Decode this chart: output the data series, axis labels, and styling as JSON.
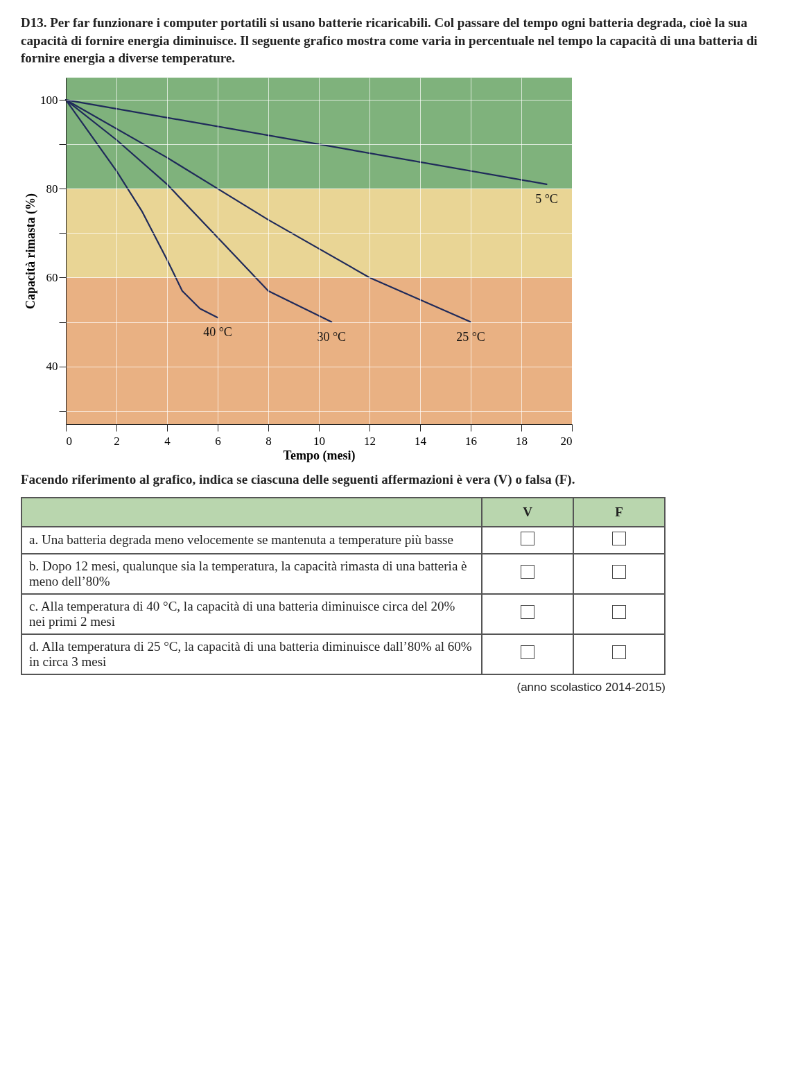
{
  "chart_data": {
    "type": "line",
    "title": "D13. Per far funzionare i computer portatili si usano batterie ricaricabili. Col passare del tempo ogni batteria degrada, cioè la sua capacità di fornire energia diminuisce. Il seguente grafico mostra come varia in percentuale nel tempo la capacità di una batteria di fornire energia a diverse temperature.",
    "xlabel": "Tempo (mesi)",
    "ylabel": "Capacità rimasta (%)",
    "series": [
      {
        "name": "5 °C",
        "color": "#1f2a5a",
        "x": [
          0,
          19
        ],
        "values": [
          100,
          81
        ]
      },
      {
        "name": "25 °C",
        "color": "#1f2a5a",
        "x": [
          0,
          4,
          8,
          12,
          16
        ],
        "values": [
          100,
          87,
          73,
          60,
          50
        ]
      },
      {
        "name": "30 °C",
        "color": "#1f2a5a",
        "x": [
          0,
          2,
          4,
          6,
          8,
          10.5
        ],
        "values": [
          100,
          91,
          81,
          69,
          57,
          50
        ]
      },
      {
        "name": "40 °C",
        "color": "#1f2a5a",
        "x": [
          0,
          1,
          2,
          3,
          4,
          4.6,
          5.3,
          6
        ],
        "values": [
          100,
          92,
          84,
          75,
          64,
          57,
          53,
          51
        ]
      }
    ],
    "bands": [
      {
        "axis": "y",
        "from": 80,
        "to": 105,
        "color": "#7fb27c"
      },
      {
        "axis": "y",
        "from": 60,
        "to": 80,
        "color": "#e9d595"
      },
      {
        "axis": "y",
        "from": 27,
        "to": 60,
        "color": "#e9b183"
      }
    ],
    "xlim": [
      0,
      20
    ],
    "xticks": [
      0,
      2,
      4,
      6,
      8,
      10,
      12,
      14,
      16,
      18,
      20
    ],
    "ylim": [
      27,
      105
    ],
    "yticks": [
      {
        "value": 30,
        "label": null
      },
      40,
      {
        "value": 50,
        "label": null
      },
      60,
      {
        "value": 70,
        "label": null
      },
      80,
      {
        "value": 90,
        "label": null
      },
      100
    ],
    "grid": true,
    "line_style": "solid",
    "marker": "none",
    "annotations": [
      "Facendo riferimento al grafico, indica se ciascuna delle seguenti affermazioni è vera (V) o falsa (F).",
      "V",
      "F",
      "a. Una batteria degrada meno velocemente se mantenuta a temperature più basse",
      "b. Dopo 12 mesi, qualunque sia la temperatura, la capacità rimasta di una batteria è meno dell’80%",
      "c. Alla temperatura di 40 °C, la capacità di una batteria diminuisce circa del 20% nei primi 2 mesi",
      "d. Alla temperatura di 25 °C, la capacità di una batteria diminuisce dall’80% al 60% in circa 3 mesi",
      "(anno scolastico 2014-2015)"
    ]
  }
}
